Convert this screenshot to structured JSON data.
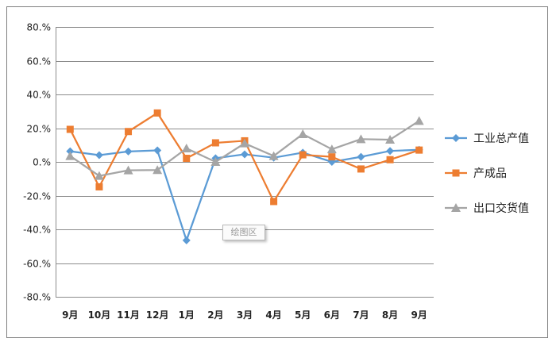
{
  "chart_data": {
    "type": "line",
    "categories": [
      "9月",
      "10月",
      "11月",
      "12月",
      "1月",
      "2月",
      "3月",
      "4月",
      "5月",
      "6月",
      "7月",
      "8月",
      "9月"
    ],
    "ylim": [
      -80,
      80
    ],
    "ytick_values": [
      80,
      60,
      40,
      20,
      0,
      -20,
      -40,
      -60,
      -80
    ],
    "ytick_labels": [
      "80.%",
      "60.%",
      "40.%",
      "20.%",
      "0.%",
      "-20.%",
      "-40.%",
      "-60.%",
      "-80.%"
    ],
    "grid": true,
    "legend_position": "right",
    "series": [
      {
        "name": "工业总产值",
        "color": "#5b9bd5",
        "marker": "diamond",
        "values": [
          6.3,
          4.0,
          6.2,
          6.8,
          -46.5,
          2.2,
          4.5,
          2.5,
          5.5,
          0.0,
          3.0,
          6.5,
          7.2
        ]
      },
      {
        "name": "产成品",
        "color": "#ed7d31",
        "marker": "square",
        "values": [
          19.3,
          -14.8,
          18.0,
          29.0,
          2.1,
          11.3,
          12.5,
          -23.5,
          4.2,
          3.0,
          -4.2,
          1.3,
          7.0
        ]
      },
      {
        "name": "出口交货值",
        "color": "#a5a5a5",
        "marker": "triangle",
        "values": [
          3.5,
          -8.3,
          -5.0,
          -4.8,
          8.0,
          0.0,
          11.0,
          3.5,
          16.5,
          7.5,
          13.5,
          13.2,
          24.3
        ]
      }
    ],
    "tooltip_text": "绘图区"
  }
}
